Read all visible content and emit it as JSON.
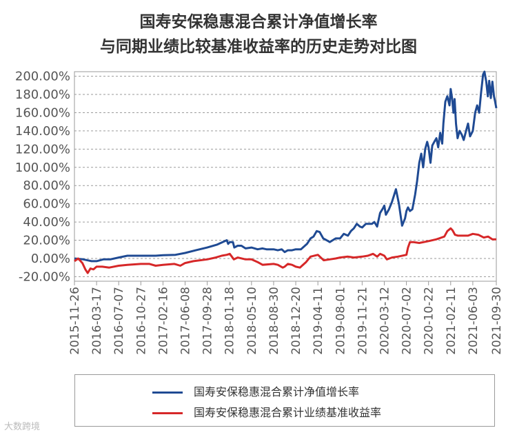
{
  "chart_data": {
    "type": "line",
    "title": [
      "国寿安保稳惠混合累计净值增长率",
      "与同期业绩比较基准收益率的历史走势对比图"
    ],
    "xlabel": "",
    "ylabel": "",
    "x_tick_labels": [
      "2015-11-26",
      "2016-03-17",
      "2016-07-07",
      "2016-10-27",
      "2017-02-16",
      "2017-06-08",
      "2017-09-28",
      "2018-01-18",
      "2018-05-10",
      "2018-08-30",
      "2018-12-20",
      "2019-04-11",
      "2019-08-01",
      "2019-11-21",
      "2020-03-12",
      "2020-07-02",
      "2020-10-22",
      "2021-02-11",
      "2021-06-03",
      "2021-09-30"
    ],
    "y_tick_labels": [
      "200.00%",
      "180.00%",
      "160.00%",
      "140.00%",
      "120.00%",
      "100.00%",
      "80.00%",
      "60.00%",
      "40.00%",
      "20.00%",
      "0.00%",
      "-20.00%"
    ],
    "ylim": [
      -20,
      200
    ],
    "grid": true,
    "legend_position": "bottom",
    "series": [
      {
        "name": "国寿安保稳惠混合累计净值增长率",
        "color": "#1f4a93",
        "points": [
          [
            "2015-11-26",
            0
          ],
          [
            "2016-01-10",
            -1
          ],
          [
            "2016-02-20",
            -3
          ],
          [
            "2016-03-17",
            -3
          ],
          [
            "2016-04-20",
            -1
          ],
          [
            "2016-05-25",
            -1
          ],
          [
            "2016-07-07",
            1
          ],
          [
            "2016-08-20",
            3
          ],
          [
            "2016-10-27",
            3
          ],
          [
            "2017-01-10",
            3
          ],
          [
            "2017-02-16",
            3.5
          ],
          [
            "2017-04-20",
            4
          ],
          [
            "2017-06-08",
            6
          ],
          [
            "2017-08-01",
            9
          ],
          [
            "2017-09-28",
            12
          ],
          [
            "2017-11-15",
            15
          ],
          [
            "2018-01-05",
            20
          ],
          [
            "2018-01-12",
            16
          ],
          [
            "2018-01-20",
            18
          ],
          [
            "2018-02-05",
            18
          ],
          [
            "2018-02-12",
            12
          ],
          [
            "2018-03-01",
            14
          ],
          [
            "2018-03-20",
            14
          ],
          [
            "2018-04-10",
            11
          ],
          [
            "2018-05-10",
            12
          ],
          [
            "2018-06-10",
            10
          ],
          [
            "2018-07-05",
            11
          ],
          [
            "2018-07-25",
            10
          ],
          [
            "2018-08-30",
            10
          ],
          [
            "2018-09-20",
            9
          ],
          [
            "2018-10-10",
            10
          ],
          [
            "2018-10-25",
            7
          ],
          [
            "2018-11-10",
            9
          ],
          [
            "2018-12-01",
            9
          ],
          [
            "2018-12-20",
            10
          ],
          [
            "2019-01-15",
            10
          ],
          [
            "2019-02-15",
            16
          ],
          [
            "2019-03-05",
            22
          ],
          [
            "2019-03-20",
            24
          ],
          [
            "2019-04-05",
            30
          ],
          [
            "2019-04-20",
            29
          ],
          [
            "2019-05-08",
            22
          ],
          [
            "2019-05-25",
            20
          ],
          [
            "2019-06-10",
            18
          ],
          [
            "2019-06-25",
            20
          ],
          [
            "2019-07-10",
            22
          ],
          [
            "2019-08-01",
            22
          ],
          [
            "2019-08-20",
            27
          ],
          [
            "2019-09-10",
            25
          ],
          [
            "2019-09-25",
            30
          ],
          [
            "2019-10-10",
            33
          ],
          [
            "2019-10-25",
            38
          ],
          [
            "2019-11-10",
            35
          ],
          [
            "2019-11-21",
            34
          ],
          [
            "2019-12-10",
            38
          ],
          [
            "2020-01-10",
            38
          ],
          [
            "2020-01-22",
            40
          ],
          [
            "2020-02-05",
            35
          ],
          [
            "2020-02-20",
            50
          ],
          [
            "2020-03-05",
            55
          ],
          [
            "2020-03-12",
            58
          ],
          [
            "2020-03-20",
            48
          ],
          [
            "2020-04-05",
            54
          ],
          [
            "2020-04-20",
            62
          ],
          [
            "2020-05-10",
            76
          ],
          [
            "2020-05-25",
            60
          ],
          [
            "2020-06-10",
            36
          ],
          [
            "2020-06-25",
            44
          ],
          [
            "2020-07-02",
            52
          ],
          [
            "2020-07-10",
            56
          ],
          [
            "2020-07-20",
            52
          ],
          [
            "2020-08-01",
            54
          ],
          [
            "2020-08-15",
            70
          ],
          [
            "2020-08-25",
            85
          ],
          [
            "2020-09-05",
            105
          ],
          [
            "2020-09-15",
            115
          ],
          [
            "2020-09-25",
            100
          ],
          [
            "2020-10-05",
            120
          ],
          [
            "2020-10-15",
            128
          ],
          [
            "2020-10-22",
            122
          ],
          [
            "2020-11-01",
            105
          ],
          [
            "2020-11-10",
            124
          ],
          [
            "2020-11-20",
            128
          ],
          [
            "2020-12-01",
            132
          ],
          [
            "2020-12-10",
            122
          ],
          [
            "2020-12-20",
            138
          ],
          [
            "2020-12-30",
            126
          ],
          [
            "2021-01-05",
            148
          ],
          [
            "2021-01-15",
            172
          ],
          [
            "2021-01-25",
            178
          ],
          [
            "2021-02-05",
            168
          ],
          [
            "2021-02-11",
            186
          ],
          [
            "2021-02-18",
            176
          ],
          [
            "2021-02-25",
            160
          ],
          [
            "2021-03-03",
            175
          ],
          [
            "2021-03-10",
            148
          ],
          [
            "2021-03-18",
            132
          ],
          [
            "2021-03-28",
            140
          ],
          [
            "2021-04-08",
            136
          ],
          [
            "2021-04-18",
            130
          ],
          [
            "2021-04-30",
            140
          ],
          [
            "2021-05-10",
            148
          ],
          [
            "2021-05-20",
            134
          ],
          [
            "2021-06-03",
            140
          ],
          [
            "2021-06-15",
            160
          ],
          [
            "2021-06-25",
            168
          ],
          [
            "2021-07-05",
            160
          ],
          [
            "2021-07-15",
            182
          ],
          [
            "2021-07-25",
            202
          ],
          [
            "2021-08-01",
            205
          ],
          [
            "2021-08-10",
            194
          ],
          [
            "2021-08-18",
            178
          ],
          [
            "2021-08-25",
            195
          ],
          [
            "2021-09-02",
            176
          ],
          [
            "2021-09-10",
            194
          ],
          [
            "2021-09-18",
            178
          ],
          [
            "2021-09-24",
            172
          ],
          [
            "2021-09-30",
            165
          ]
        ]
      },
      {
        "name": "国寿安保稳惠混合累计业绩基准收益率",
        "color": "#d62728",
        "points": [
          [
            "2015-11-26",
            -3
          ],
          [
            "2015-12-15",
            0
          ],
          [
            "2016-01-05",
            -5
          ],
          [
            "2016-01-20",
            -12
          ],
          [
            "2016-02-01",
            -16
          ],
          [
            "2016-02-15",
            -11
          ],
          [
            "2016-03-01",
            -12
          ],
          [
            "2016-03-17",
            -9
          ],
          [
            "2016-04-15",
            -9
          ],
          [
            "2016-05-20",
            -10
          ],
          [
            "2016-07-07",
            -8
          ],
          [
            "2016-08-20",
            -7
          ],
          [
            "2016-10-27",
            -6
          ],
          [
            "2016-12-10",
            -6
          ],
          [
            "2017-01-10",
            -8
          ],
          [
            "2017-02-16",
            -7
          ],
          [
            "2017-04-15",
            -6
          ],
          [
            "2017-05-15",
            -8
          ],
          [
            "2017-06-08",
            -5
          ],
          [
            "2017-07-20",
            -3
          ],
          [
            "2017-09-28",
            -1
          ],
          [
            "2017-11-10",
            1
          ],
          [
            "2017-12-10",
            3
          ],
          [
            "2018-01-05",
            4
          ],
          [
            "2018-01-20",
            5
          ],
          [
            "2018-02-10",
            -1
          ],
          [
            "2018-03-01",
            1
          ],
          [
            "2018-04-10",
            -1
          ],
          [
            "2018-05-10",
            -1
          ],
          [
            "2018-06-10",
            -4
          ],
          [
            "2018-07-05",
            -7
          ],
          [
            "2018-08-30",
            -6
          ],
          [
            "2018-09-20",
            -7
          ],
          [
            "2018-10-15",
            -10
          ],
          [
            "2018-10-25",
            -9
          ],
          [
            "2018-11-10",
            -6
          ],
          [
            "2018-12-01",
            -7
          ],
          [
            "2018-12-20",
            -9
          ],
          [
            "2019-01-10",
            -10
          ],
          [
            "2019-02-10",
            -4
          ],
          [
            "2019-03-05",
            2
          ],
          [
            "2019-04-11",
            4
          ],
          [
            "2019-05-10",
            -2
          ],
          [
            "2019-06-10",
            -1
          ],
          [
            "2019-07-10",
            0
          ],
          [
            "2019-08-01",
            1
          ],
          [
            "2019-09-10",
            2
          ],
          [
            "2019-10-10",
            1
          ],
          [
            "2019-11-21",
            2
          ],
          [
            "2019-12-20",
            3
          ],
          [
            "2020-01-15",
            5
          ],
          [
            "2020-02-05",
            2
          ],
          [
            "2020-02-20",
            5
          ],
          [
            "2020-03-12",
            3
          ],
          [
            "2020-03-25",
            -1
          ],
          [
            "2020-04-20",
            1
          ],
          [
            "2020-05-20",
            2
          ],
          [
            "2020-07-02",
            4
          ],
          [
            "2020-07-10",
            12
          ],
          [
            "2020-07-20",
            18
          ],
          [
            "2020-08-05",
            18
          ],
          [
            "2020-09-05",
            17
          ],
          [
            "2020-10-22",
            19
          ],
          [
            "2020-12-01",
            21
          ],
          [
            "2021-01-10",
            24
          ],
          [
            "2021-01-25",
            30
          ],
          [
            "2021-02-11",
            33
          ],
          [
            "2021-02-20",
            31
          ],
          [
            "2021-03-05",
            26
          ],
          [
            "2021-03-20",
            25
          ],
          [
            "2021-04-15",
            25
          ],
          [
            "2021-05-10",
            25
          ],
          [
            "2021-06-03",
            27
          ],
          [
            "2021-07-01",
            26
          ],
          [
            "2021-07-28",
            23
          ],
          [
            "2021-08-20",
            24
          ],
          [
            "2021-09-10",
            21
          ],
          [
            "2021-09-30",
            21
          ]
        ]
      }
    ]
  },
  "watermark": "大数跨境"
}
